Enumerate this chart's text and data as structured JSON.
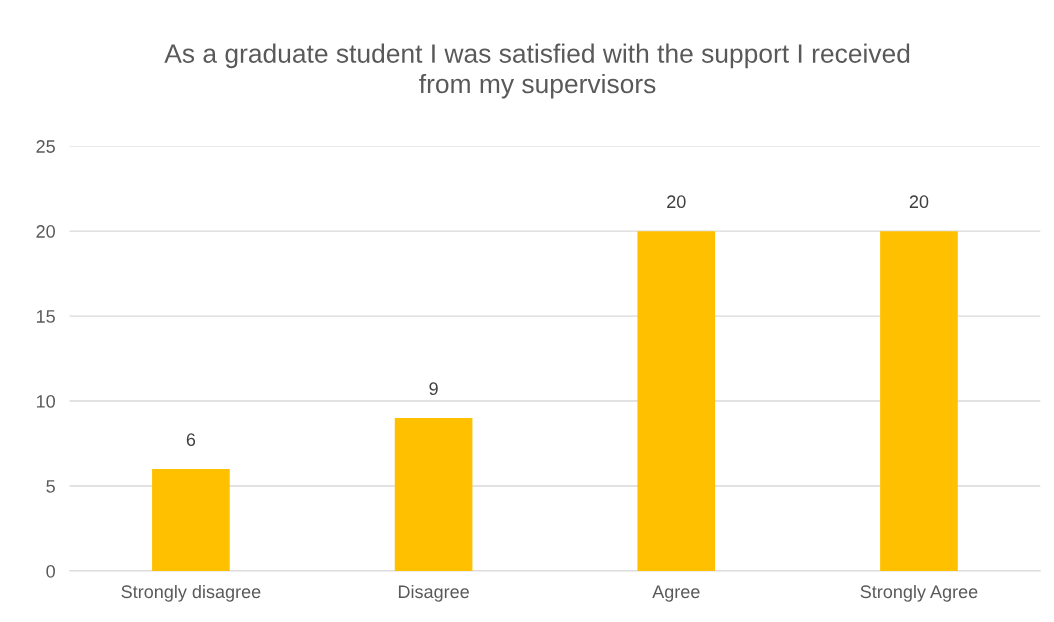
{
  "chart_data": {
    "type": "bar",
    "title": "As a graduate student I was satisfied with the support I received\nfrom my supervisors",
    "categories": [
      "Strongly disagree",
      "Disagree",
      "Agree",
      "Strongly Agree"
    ],
    "values": [
      6,
      9,
      20,
      20
    ],
    "color": "#ffc000",
    "ylim": [
      0,
      25
    ],
    "yticks": [
      0,
      5,
      10,
      15,
      20,
      25
    ],
    "grid": "y",
    "data_labels": true
  }
}
